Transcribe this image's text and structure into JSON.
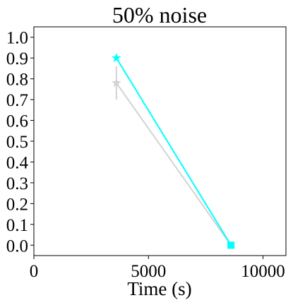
{
  "chart_data": {
    "type": "line",
    "title": "50% noise",
    "xlabel": "Time (s)",
    "ylabel": "",
    "xlim": [
      0,
      11000
    ],
    "ylim": [
      -0.05,
      1.05
    ],
    "x_ticks": [
      0,
      5000,
      10000
    ],
    "x_tick_labels": [
      "0",
      "5000",
      "10000"
    ],
    "y_ticks": [
      0.0,
      0.1,
      0.2,
      0.3,
      0.4,
      0.5,
      0.6,
      0.7,
      0.8,
      0.9,
      1.0
    ],
    "y_tick_labels": [
      "0.0",
      "0.1",
      "0.2",
      "0.3",
      "0.4",
      "0.5",
      "0.6",
      "0.7",
      "0.8",
      "0.9",
      "1.0"
    ],
    "grid": false,
    "series": [
      {
        "color": "#d3d3d3",
        "points": [
          {
            "x": 3600,
            "y": 0.78,
            "yerr": 0.08,
            "marker": "star"
          },
          {
            "x": 8600,
            "y": 0.0,
            "marker": "square"
          }
        ]
      },
      {
        "color": "#00ffff",
        "points": [
          {
            "x": 3600,
            "y": 0.9,
            "marker": "star"
          },
          {
            "x": 8600,
            "y": 0.0,
            "marker": "square"
          }
        ]
      }
    ]
  }
}
